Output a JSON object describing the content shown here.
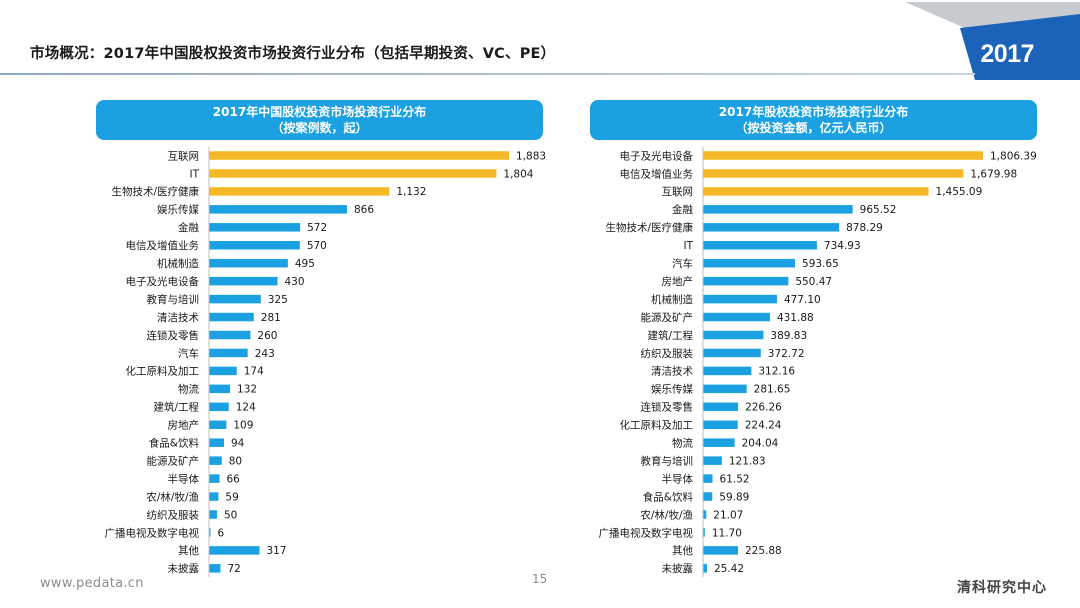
{
  "slide": {
    "title": "市场概况：2017年中国股权投资市场投资行业分布（包括早期投资、VC、PE）",
    "year_badge": "2017",
    "footer_url": "www.pedata.cn",
    "page_number": "15",
    "brand": "清科研究中心"
  },
  "colors": {
    "highlight": "#f5b927",
    "regular": "#1ba1e2",
    "header": "#1ba1e2"
  },
  "chart_data": [
    {
      "type": "bar",
      "orientation": "horizontal",
      "title_line1": "2017年中国股权投资市场投资行业分布",
      "title_line2": "（按案例数，起）",
      "categories": [
        "互联网",
        "IT",
        "生物技术/医疗健康",
        "娱乐传媒",
        "金融",
        "电信及增值业务",
        "机械制造",
        "电子及光电设备",
        "教育与培训",
        "清洁技术",
        "连锁及零售",
        "汽车",
        "化工原料及加工",
        "物流",
        "建筑/工程",
        "房地产",
        "食品&饮料",
        "能源及矿产",
        "半导体",
        "农/林/牧/渔",
        "纺织及服装",
        "广播电视及数字电视",
        "其他",
        "未披露"
      ],
      "values": [
        1883,
        1804,
        1132,
        866,
        572,
        570,
        495,
        430,
        325,
        281,
        260,
        243,
        174,
        132,
        124,
        109,
        94,
        80,
        66,
        59,
        50,
        6,
        317,
        72
      ],
      "value_labels": [
        "1,883",
        "1,804",
        "1,132",
        "866",
        "572",
        "570",
        "495",
        "430",
        "325",
        "281",
        "260",
        "243",
        "174",
        "132",
        "124",
        "109",
        "94",
        "80",
        "66",
        "59",
        "50",
        "6",
        "317",
        "72"
      ],
      "highlighted_count": 3,
      "xlim": [
        0,
        1883
      ]
    },
    {
      "type": "bar",
      "orientation": "horizontal",
      "title_line1": "2017年股权投资市场投资行业分布",
      "title_line2": "（按投资金额，亿元人民币）",
      "categories": [
        "电子及光电设备",
        "电信及增值业务",
        "互联网",
        "金融",
        "生物技术/医疗健康",
        "IT",
        "汽车",
        "房地产",
        "机械制造",
        "能源及矿产",
        "建筑/工程",
        "纺织及服装",
        "清洁技术",
        "娱乐传媒",
        "连锁及零售",
        "化工原料及加工",
        "物流",
        "教育与培训",
        "半导体",
        "食品&饮料",
        "农/林/牧/渔",
        "广播电视及数字电视",
        "其他",
        "未披露"
      ],
      "values": [
        1806.39,
        1679.98,
        1455.09,
        965.52,
        878.29,
        734.93,
        593.65,
        550.47,
        477.1,
        431.88,
        389.83,
        372.72,
        312.16,
        281.65,
        226.26,
        224.24,
        204.04,
        121.83,
        61.52,
        59.89,
        21.07,
        11.7,
        225.88,
        25.42
      ],
      "value_labels": [
        "1,806.39",
        "1,679.98",
        "1,455.09",
        "965.52",
        "878.29",
        "734.93",
        "593.65",
        "550.47",
        "477.10",
        "431.88",
        "389.83",
        "372.72",
        "312.16",
        "281.65",
        "226.26",
        "224.24",
        "204.04",
        "121.83",
        "61.52",
        "59.89",
        "21.07",
        "11.70",
        "225.88",
        "25.42"
      ],
      "highlighted_count": 3,
      "xlim": [
        0,
        1806.39
      ]
    }
  ]
}
